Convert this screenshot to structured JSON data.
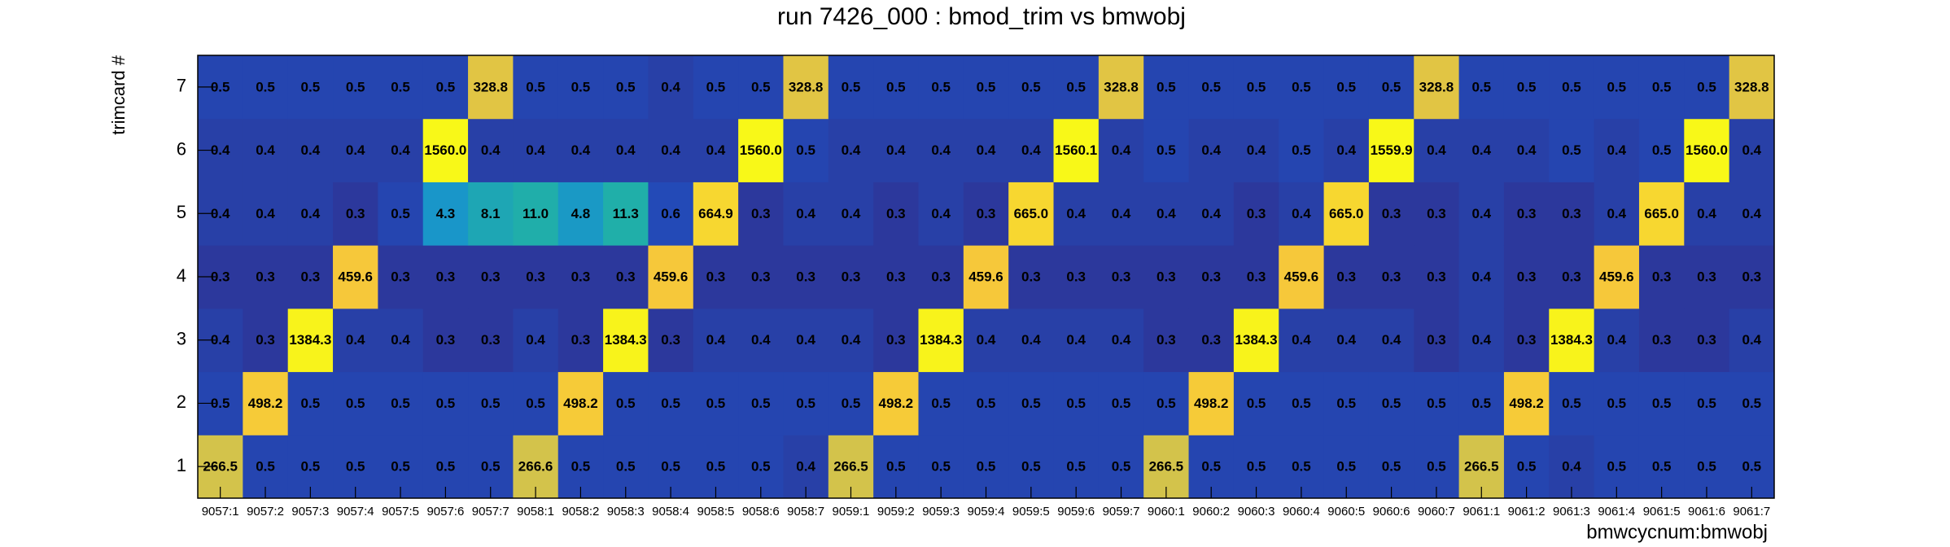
{
  "chart_data": {
    "type": "heatmap",
    "title": "run 7426_000 : bmod_trim vs bmwobj",
    "x_label": "bmwcycnum:bmwobj",
    "y_label": "trimcard #",
    "x_categories": [
      "9057:1",
      "9057:2",
      "9057:3",
      "9057:4",
      "9057:5",
      "9057:6",
      "9057:7",
      "9058:1",
      "9058:2",
      "9058:3",
      "9058:4",
      "9058:5",
      "9058:6",
      "9058:7",
      "9059:1",
      "9059:2",
      "9059:3",
      "9059:4",
      "9059:5",
      "9059:6",
      "9059:7",
      "9060:1",
      "9060:2",
      "9060:3",
      "9060:4",
      "9060:5",
      "9060:6",
      "9060:7",
      "9061:1",
      "9061:2",
      "9061:3",
      "9061:4",
      "9061:5",
      "9061:6",
      "9061:7"
    ],
    "y_categories": [
      "1",
      "2",
      "3",
      "4",
      "5",
      "6",
      "7"
    ],
    "z": [
      [
        266.5,
        0.5,
        0.5,
        0.5,
        0.5,
        0.5,
        0.5,
        266.6,
        0.5,
        0.5,
        0.5,
        0.5,
        0.5,
        0.4,
        266.5,
        0.5,
        0.5,
        0.5,
        0.5,
        0.5,
        0.5,
        266.5,
        0.5,
        0.5,
        0.5,
        0.5,
        0.5,
        0.5,
        266.5,
        0.5,
        0.4,
        0.5,
        0.5,
        0.5,
        0.5
      ],
      [
        0.5,
        498.2,
        0.5,
        0.5,
        0.5,
        0.5,
        0.5,
        0.5,
        498.2,
        0.5,
        0.5,
        0.5,
        0.5,
        0.5,
        0.5,
        498.2,
        0.5,
        0.5,
        0.5,
        0.5,
        0.5,
        0.5,
        498.2,
        0.5,
        0.5,
        0.5,
        0.5,
        0.5,
        0.5,
        498.2,
        0.5,
        0.5,
        0.5,
        0.5,
        0.5
      ],
      [
        0.4,
        0.3,
        1384.3,
        0.4,
        0.4,
        0.3,
        0.3,
        0.4,
        0.3,
        1384.3,
        0.3,
        0.4,
        0.4,
        0.4,
        0.4,
        0.3,
        1384.3,
        0.4,
        0.4,
        0.4,
        0.4,
        0.3,
        0.3,
        1384.3,
        0.4,
        0.4,
        0.4,
        0.3,
        0.4,
        0.3,
        1384.3,
        0.4,
        0.3,
        0.3,
        0.4
      ],
      [
        0.3,
        0.3,
        0.3,
        459.6,
        0.3,
        0.3,
        0.3,
        0.3,
        0.3,
        0.3,
        459.6,
        0.3,
        0.3,
        0.3,
        0.3,
        0.3,
        0.3,
        459.6,
        0.3,
        0.3,
        0.3,
        0.3,
        0.3,
        0.3,
        459.6,
        0.3,
        0.3,
        0.3,
        0.4,
        0.3,
        0.3,
        459.6,
        0.3,
        0.3,
        0.3
      ],
      [
        0.4,
        0.4,
        0.4,
        0.3,
        0.5,
        4.3,
        8.1,
        11.0,
        4.8,
        11.3,
        0.6,
        664.9,
        0.3,
        0.4,
        0.4,
        0.3,
        0.4,
        0.3,
        665.0,
        0.4,
        0.4,
        0.4,
        0.4,
        0.3,
        0.4,
        665.0,
        0.3,
        0.3,
        0.4,
        0.3,
        0.3,
        0.4,
        665.0,
        0.4,
        0.4
      ],
      [
        0.4,
        0.4,
        0.4,
        0.4,
        0.4,
        1560.0,
        0.4,
        0.4,
        0.4,
        0.4,
        0.4,
        0.4,
        1560.0,
        0.5,
        0.4,
        0.4,
        0.4,
        0.4,
        0.4,
        1560.1,
        0.4,
        0.5,
        0.4,
        0.4,
        0.5,
        0.4,
        1559.9,
        0.4,
        0.4,
        0.4,
        0.5,
        0.4,
        0.5,
        1560.0,
        0.4
      ],
      [
        0.5,
        0.5,
        0.5,
        0.5,
        0.5,
        0.5,
        328.8,
        0.5,
        0.5,
        0.5,
        0.4,
        0.5,
        0.5,
        328.8,
        0.5,
        0.5,
        0.5,
        0.5,
        0.5,
        0.5,
        328.8,
        0.5,
        0.5,
        0.5,
        0.5,
        0.5,
        0.5,
        328.8,
        0.5,
        0.5,
        0.5,
        0.5,
        0.5,
        0.5,
        328.8
      ]
    ],
    "value_labels": [
      [
        "266.5",
        "0.5",
        "0.5",
        "0.5",
        "0.5",
        "0.5",
        "0.5",
        "266.6",
        "0.5",
        "0.5",
        "0.5",
        "0.5",
        "0.5",
        "0.4",
        "266.5",
        "0.5",
        "0.5",
        "0.5",
        "0.5",
        "0.5",
        "0.5",
        "266.5",
        "0.5",
        "0.5",
        "0.5",
        "0.5",
        "0.5",
        "0.5",
        "266.5",
        "0.5",
        "0.4",
        "0.5",
        "0.5",
        "0.5",
        "0.5"
      ],
      [
        "0.5",
        "498.2",
        "0.5",
        "0.5",
        "0.5",
        "0.5",
        "0.5",
        "0.5",
        "498.2",
        "0.5",
        "0.5",
        "0.5",
        "0.5",
        "0.5",
        "0.5",
        "498.2",
        "0.5",
        "0.5",
        "0.5",
        "0.5",
        "0.5",
        "0.5",
        "498.2",
        "0.5",
        "0.5",
        "0.5",
        "0.5",
        "0.5",
        "0.5",
        "498.2",
        "0.5",
        "0.5",
        "0.5",
        "0.5",
        "0.5"
      ],
      [
        "0.4",
        "0.3",
        "1384.3",
        "0.4",
        "0.4",
        "0.3",
        "0.3",
        "0.4",
        "0.3",
        "1384.3",
        "0.3",
        "0.4",
        "0.4",
        "0.4",
        "0.4",
        "0.3",
        "1384.3",
        "0.4",
        "0.4",
        "0.4",
        "0.4",
        "0.3",
        "0.3",
        "1384.3",
        "0.4",
        "0.4",
        "0.4",
        "0.3",
        "0.4",
        "0.3",
        "1384.3",
        "0.4",
        "0.3",
        "0.3",
        "0.4"
      ],
      [
        "0.3",
        "0.3",
        "0.3",
        "459.6",
        "0.3",
        "0.3",
        "0.3",
        "0.3",
        "0.3",
        "0.3",
        "459.6",
        "0.3",
        "0.3",
        "0.3",
        "0.3",
        "0.3",
        "0.3",
        "459.6",
        "0.3",
        "0.3",
        "0.3",
        "0.3",
        "0.3",
        "0.3",
        "459.6",
        "0.3",
        "0.3",
        "0.3",
        "0.4",
        "0.3",
        "0.3",
        "459.6",
        "0.3",
        "0.3",
        "0.3"
      ],
      [
        "0.4",
        "0.4",
        "0.4",
        "0.3",
        "0.5",
        "4.3",
        "8.1",
        "11.0",
        "4.8",
        "11.3",
        "0.6",
        "664.9",
        "0.3",
        "0.4",
        "0.4",
        "0.3",
        "0.4",
        "0.3",
        "665.0",
        "0.4",
        "0.4",
        "0.4",
        "0.4",
        "0.3",
        "0.4",
        "665.0",
        "0.3",
        "0.3",
        "0.4",
        "0.3",
        "0.3",
        "0.4",
        "665.0",
        "0.4",
        "0.4"
      ],
      [
        "0.4",
        "0.4",
        "0.4",
        "0.4",
        "0.4",
        "1560.0",
        "0.4",
        "0.4",
        "0.4",
        "0.4",
        "0.4",
        "0.4",
        "1560.0",
        "0.5",
        "0.4",
        "0.4",
        "0.4",
        "0.4",
        "0.4",
        "1560.1",
        "0.4",
        "0.5",
        "0.4",
        "0.4",
        "0.5",
        "0.4",
        "1559.9",
        "0.4",
        "0.4",
        "0.4",
        "0.5",
        "0.4",
        "0.5",
        "1560.0",
        "0.4"
      ],
      [
        "0.5",
        "0.5",
        "0.5",
        "0.5",
        "0.5",
        "0.5",
        "328.8",
        "0.5",
        "0.5",
        "0.5",
        "0.4",
        "0.5",
        "0.5",
        "328.8",
        "0.5",
        "0.5",
        "0.5",
        "0.5",
        "0.5",
        "0.5",
        "328.8",
        "0.5",
        "0.5",
        "0.5",
        "0.5",
        "0.5",
        "0.5",
        "328.8",
        "0.5",
        "0.5",
        "0.5",
        "0.5",
        "0.5",
        "0.5",
        "328.8"
      ]
    ],
    "log_z": true,
    "palette": [
      "#2c389c",
      "#1c58cc",
      "#1890d0",
      "#20b0a8",
      "#60b880",
      "#a8bc60",
      "#f6c83a",
      "#f8f818"
    ]
  }
}
